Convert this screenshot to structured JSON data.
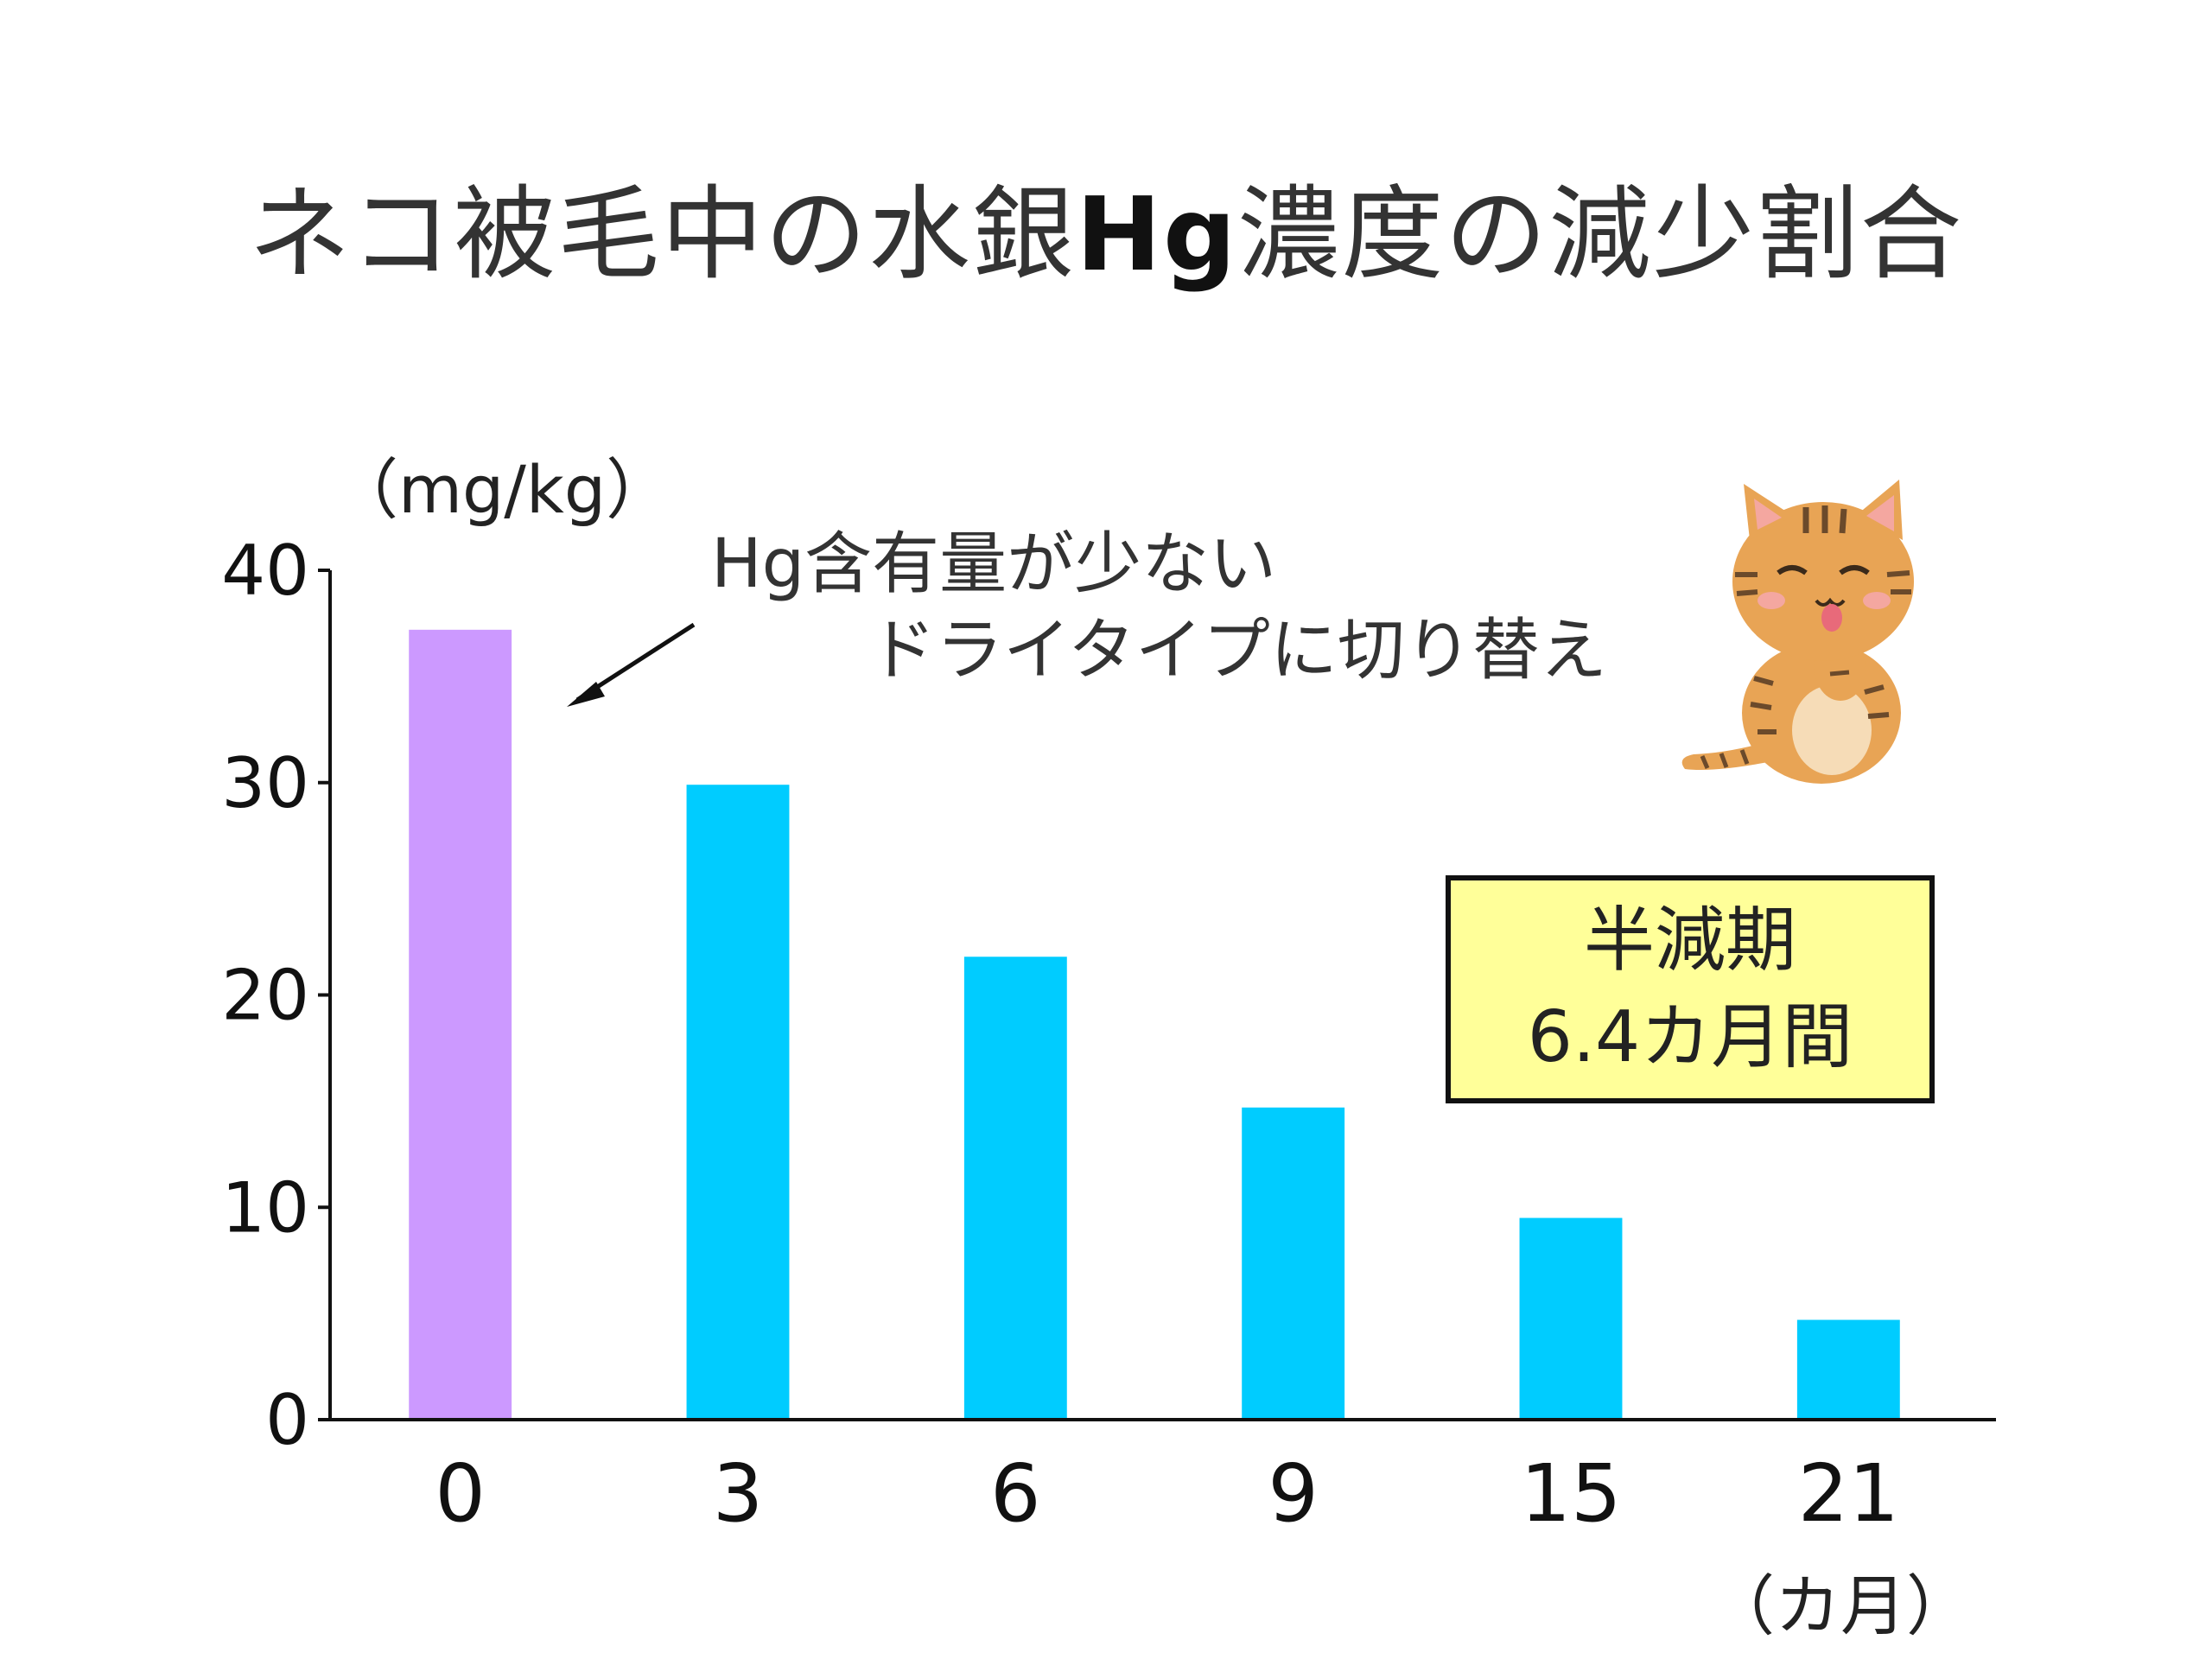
{
  "chart_data": {
    "type": "bar",
    "title_prefix": "ネコ被毛中の水銀",
    "title_bold": "Hg",
    "title_suffix": "濃度の減少割合",
    "ylabel": "（mg/kg）",
    "xlabel": "（カ月）",
    "categories": [
      "0",
      "3",
      "6",
      "9",
      "15",
      "21"
    ],
    "values": [
      37.2,
      29.9,
      21.8,
      14.7,
      9.5,
      4.7
    ],
    "bar_colors": [
      "#cc99ff",
      "#00ccff",
      "#00ccff",
      "#00ccff",
      "#00ccff",
      "#00ccff"
    ],
    "ylim": [
      0,
      40
    ],
    "yticks": [
      "0",
      "10",
      "20",
      "30",
      "40"
    ],
    "grid": false,
    "annotation": {
      "line1": "Hg含有量が少ない",
      "line2": "ドライタイプに切り替え"
    },
    "half_life": {
      "line1": "半減期",
      "line2": "6.4カ月間"
    }
  },
  "icons": {
    "cat": "cat-illustration-icon",
    "arrow": "arrow-icon"
  },
  "colors": {
    "axis": "#111111",
    "box_fill": "#ffff99",
    "purple_bar": "#cc99ff",
    "blue_bar": "#00ccff"
  }
}
